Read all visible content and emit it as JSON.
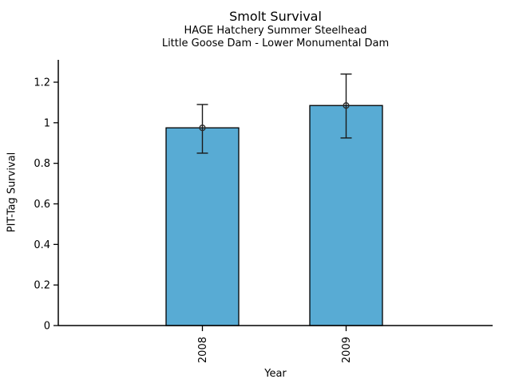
{
  "figure": {
    "title": "Smolt Survival",
    "subtitle1": "HAGE Hatchery Summer Steelhead",
    "subtitle2": "Little Goose Dam - Lower Monumental Dam"
  },
  "chart_data": {
    "type": "bar",
    "title": "Smolt Survival",
    "subtitle": [
      "HAGE Hatchery Summer Steelhead",
      "Little Goose Dam - Lower Monumental Dam"
    ],
    "categories": [
      "2008",
      "2009"
    ],
    "values": [
      0.975,
      1.085
    ],
    "error_low": [
      0.85,
      0.925
    ],
    "error_high": [
      1.09,
      1.24
    ],
    "xlabel": "Year",
    "ylabel": "PIT-Tag Survival",
    "ylim": [
      0,
      1.31
    ],
    "yticks": [
      0,
      0.2,
      0.4,
      0.6,
      0.8,
      1,
      1.2
    ],
    "ytick_labels": [
      "0",
      "0.2",
      "0.4",
      "0.6",
      "0.8",
      "1",
      "1.2"
    ],
    "x_tick_rotation": 90,
    "grid": false,
    "legend": false,
    "bar_color": "#58ABD4",
    "bar_edge_color": "#000000",
    "errorbar_color": "#1a1a1a",
    "marker": "open-circle",
    "axis_color": "#000000"
  }
}
